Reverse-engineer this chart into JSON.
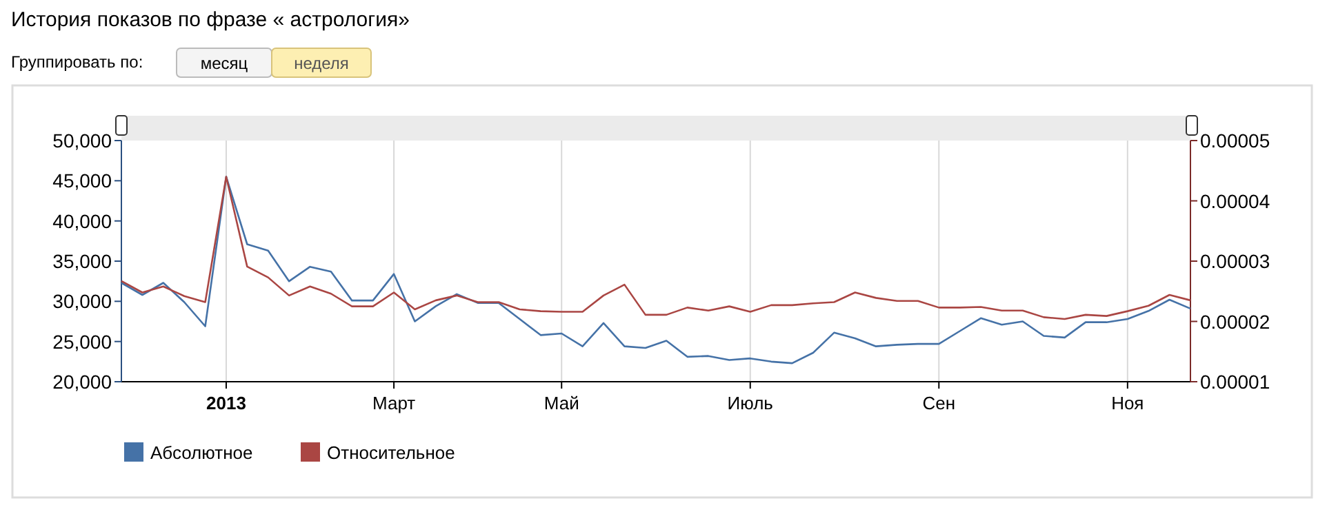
{
  "chart_data": {
    "type": "line",
    "title": "История показов по фразе « астрология»",
    "annotations": [
      "Группировать по:",
      "месяц",
      "неделя"
    ],
    "categories": [
      null,
      null,
      null,
      null,
      null,
      "2013",
      null,
      null,
      null,
      null,
      null,
      null,
      null,
      "Март",
      null,
      null,
      null,
      null,
      null,
      null,
      null,
      "Май",
      null,
      null,
      null,
      null,
      null,
      null,
      null,
      null,
      "Июль",
      null,
      null,
      null,
      null,
      null,
      null,
      null,
      null,
      "Сен",
      null,
      null,
      null,
      null,
      null,
      null,
      null,
      null,
      "Ноя",
      null,
      null,
      null
    ],
    "series": [
      {
        "name": "Абсолютное",
        "color": "#4572a7",
        "values": [
          32300,
          30800,
          32300,
          29900,
          26900,
          45500,
          37100,
          36300,
          32500,
          34300,
          33700,
          30100,
          30100,
          33400,
          27500,
          29400,
          30900,
          29800,
          29800,
          27800,
          25800,
          26000,
          24400,
          27300,
          24400,
          24200,
          25100,
          23100,
          23200,
          22700,
          22900,
          22500,
          22300,
          23600,
          26100,
          25400,
          24400,
          24600,
          24700,
          24700,
          26300,
          27900,
          27100,
          27500,
          25700,
          25500,
          27400,
          27400,
          27800,
          28800,
          30200,
          29100
        ]
      },
      {
        "name": "Относительное",
        "color": "#aa4643",
        "axis": "y2",
        "values": [
          2.67e-05,
          2.48e-05,
          2.58e-05,
          2.42e-05,
          2.32e-05,
          4.4e-05,
          2.91e-05,
          2.73e-05,
          2.43e-05,
          2.58e-05,
          2.46e-05,
          2.25e-05,
          2.25e-05,
          2.48e-05,
          2.2e-05,
          2.35e-05,
          2.43e-05,
          2.32e-05,
          2.32e-05,
          2.2e-05,
          2.17e-05,
          2.16e-05,
          2.16e-05,
          2.43e-05,
          2.61e-05,
          2.11e-05,
          2.11e-05,
          2.23e-05,
          2.18e-05,
          2.25e-05,
          2.16e-05,
          2.27e-05,
          2.27e-05,
          2.3e-05,
          2.32e-05,
          2.48e-05,
          2.39e-05,
          2.34e-05,
          2.34e-05,
          2.23e-05,
          2.23e-05,
          2.24e-05,
          2.18e-05,
          2.18e-05,
          2.07e-05,
          2.04e-05,
          2.11e-05,
          2.09e-05,
          2.17e-05,
          2.26e-05,
          2.44e-05,
          2.35e-05
        ]
      }
    ],
    "ylim": [
      20000,
      50000
    ],
    "yticks": [
      {
        "value": 20000,
        "label": "20,000"
      },
      {
        "value": 25000,
        "label": "25,000"
      },
      {
        "value": 30000,
        "label": "30,000"
      },
      {
        "value": 35000,
        "label": "35,000"
      },
      {
        "value": 40000,
        "label": "40,000"
      },
      {
        "value": 45000,
        "label": "45,000"
      },
      {
        "value": 50000,
        "label": "50,000"
      }
    ],
    "y2lim": [
      1e-05,
      5e-05
    ],
    "y2ticks": [
      {
        "value": 1e-05,
        "label": "0.00001"
      },
      {
        "value": 2e-05,
        "label": "0.00002"
      },
      {
        "value": 3e-05,
        "label": "0.00003"
      },
      {
        "value": 4e-05,
        "label": "0.00004"
      },
      {
        "value": 5e-05,
        "label": "0.00005"
      }
    ],
    "grid": "x",
    "legend": "bottom",
    "marker": "none",
    "line_style": "solid"
  }
}
